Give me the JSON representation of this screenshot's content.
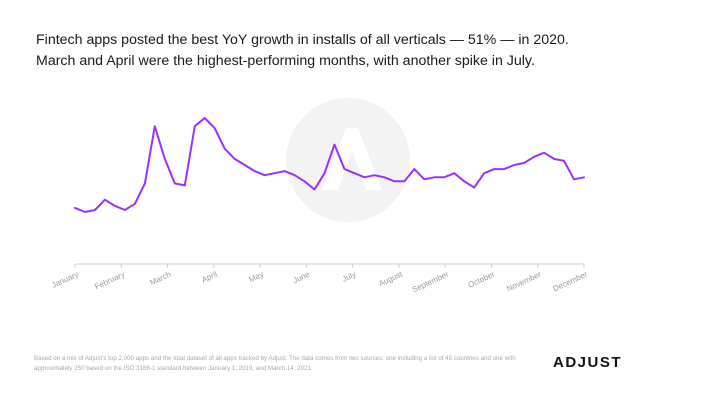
{
  "header": {
    "line1": "Fintech apps posted the best YoY growth in installs of all verticals — 51% — in 2020.",
    "line2": "March and April were the highest-performing months, with another spike in July."
  },
  "footer": {
    "note": "Based on a mix of Adjust’s top 2,000 apps and the total dataset of all apps tracked by Adjust. The data comes from two sources: one including a list of 45 countries and one with approximately 250 based on the ISO 3166-1 standard between January 1, 2019, and March 14, 2021.",
    "logo": "ADJUST"
  },
  "colors": {
    "line": "#9b30ff",
    "axis": "#cfcfcf",
    "watermark": "#f3f3f3"
  },
  "chart_data": {
    "type": "line",
    "title": "",
    "xlabel": "",
    "ylabel": "",
    "x_tick_labels": [
      "January",
      "February",
      "March",
      "April",
      "May",
      "June",
      "July",
      "August",
      "September",
      "October",
      "November",
      "December"
    ],
    "grid": false,
    "legend": "none",
    "series": [
      {
        "values": [
          11,
          9,
          10,
          15,
          12,
          10,
          13,
          23,
          51,
          35,
          23,
          22,
          51,
          55,
          50,
          40,
          35,
          32,
          29,
          27,
          28,
          29,
          27,
          24,
          20,
          28,
          42,
          30,
          28,
          26,
          27,
          26,
          24,
          24,
          30,
          25,
          26,
          26,
          28,
          24,
          21,
          28,
          30,
          30,
          32,
          33,
          36,
          38,
          35,
          34,
          25,
          26
        ]
      }
    ]
  }
}
